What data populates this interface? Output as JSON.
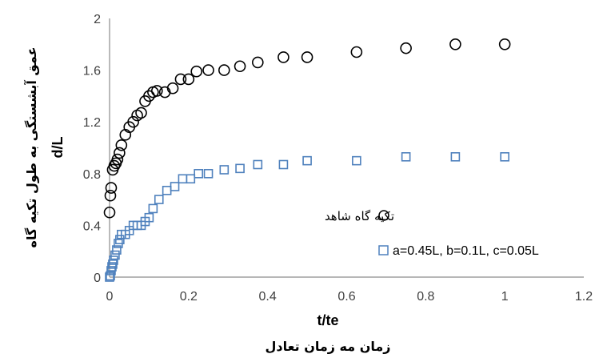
{
  "chart_data": {
    "type": "scatter",
    "xlabel": "t/te",
    "xlabel_secondary": "زمان مه زمان تعادل",
    "ylabel": "d/L",
    "ylabel_secondary": "عمق آبشستگی به طول تکیه گاه",
    "xlim": [
      0,
      1.2
    ],
    "ylim": [
      0,
      2
    ],
    "x_ticks": [
      "0",
      "0.2",
      "0.4",
      "0.6",
      "0.8",
      "1",
      "1.2"
    ],
    "y_ticks": [
      "0",
      "0.4",
      "0.8",
      "1.2",
      "1.6",
      "2"
    ],
    "x_tick_values": [
      0,
      0.2,
      0.4,
      0.6,
      0.8,
      1.0,
      1.2
    ],
    "y_tick_values": [
      0,
      0.4,
      0.8,
      1.2,
      1.6,
      2.0
    ],
    "grid": false,
    "legend_position": "right",
    "series": [
      {
        "name": "تکیه گاه شاهد",
        "marker": "circle",
        "color": "#000000",
        "x": [
          0,
          0.002,
          0.004,
          0.008,
          0.012,
          0.016,
          0.02,
          0.025,
          0.03,
          0.04,
          0.05,
          0.06,
          0.07,
          0.08,
          0.09,
          0.1,
          0.11,
          0.12,
          0.14,
          0.16,
          0.18,
          0.2,
          0.22,
          0.25,
          0.29,
          0.33,
          0.375,
          0.44,
          0.5,
          0.625,
          0.75,
          0.875,
          1.0
        ],
        "y": [
          0.5,
          0.63,
          0.69,
          0.83,
          0.86,
          0.88,
          0.91,
          0.96,
          1.02,
          1.1,
          1.16,
          1.2,
          1.25,
          1.27,
          1.36,
          1.4,
          1.43,
          1.44,
          1.43,
          1.46,
          1.53,
          1.53,
          1.59,
          1.6,
          1.6,
          1.63,
          1.66,
          1.7,
          1.7,
          1.74,
          1.77,
          1.8,
          1.8
        ]
      },
      {
        "name": "a=0.45L, b=0.1L, c=0.05L",
        "marker": "square",
        "color": "#4f81bd",
        "x": [
          0,
          0.002,
          0.004,
          0.006,
          0.008,
          0.01,
          0.014,
          0.018,
          0.022,
          0.026,
          0.03,
          0.04,
          0.05,
          0.06,
          0.07,
          0.08,
          0.09,
          0.1,
          0.11,
          0.125,
          0.145,
          0.165,
          0.185,
          0.205,
          0.225,
          0.25,
          0.29,
          0.33,
          0.375,
          0.44,
          0.5,
          0.625,
          0.75,
          0.875,
          1.0
        ],
        "y": [
          0,
          0.01,
          0.05,
          0.08,
          0.1,
          0.13,
          0.17,
          0.21,
          0.26,
          0.29,
          0.33,
          0.33,
          0.36,
          0.4,
          0.4,
          0.4,
          0.43,
          0.46,
          0.53,
          0.6,
          0.67,
          0.7,
          0.76,
          0.76,
          0.8,
          0.8,
          0.83,
          0.84,
          0.87,
          0.87,
          0.9,
          0.9,
          0.93,
          0.93,
          0.93
        ]
      }
    ]
  },
  "colors": {
    "axis": "#7f7f7f",
    "series1": "#000000",
    "series2": "#4f81bd"
  }
}
